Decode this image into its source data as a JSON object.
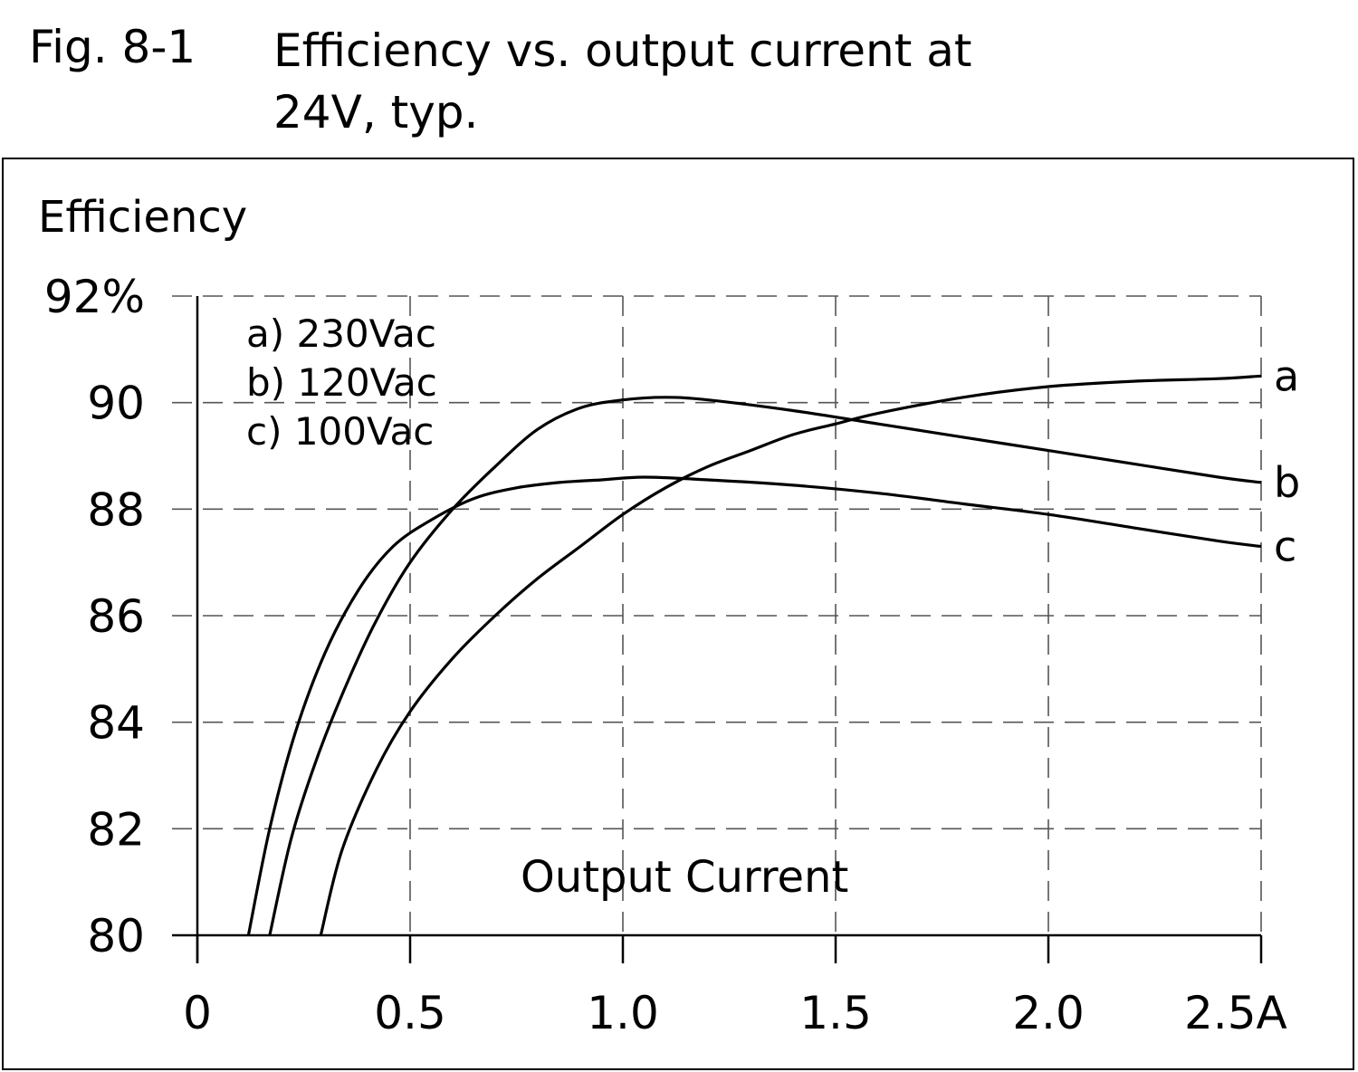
{
  "caption": {
    "number": "Fig. 8-1",
    "title": "Efficiency vs. output current at 24V, typ."
  },
  "chart_data": {
    "type": "line",
    "title": "Efficiency vs. output current at 24V, typ.",
    "xlabel": "Output Current",
    "ylabel": "Efficiency",
    "xlim": [
      0,
      2.5
    ],
    "ylim": [
      80,
      92
    ],
    "grid": true,
    "legend_position": "top-left",
    "x_ticks": [
      {
        "value": 0,
        "label": "0"
      },
      {
        "value": 0.5,
        "label": "0.5"
      },
      {
        "value": 1.0,
        "label": "1.0"
      },
      {
        "value": 1.5,
        "label": "1.5"
      },
      {
        "value": 2.0,
        "label": "2.0"
      },
      {
        "value": 2.5,
        "label": "2.5A"
      }
    ],
    "y_ticks": [
      {
        "value": 80,
        "label": "80"
      },
      {
        "value": 82,
        "label": "82"
      },
      {
        "value": 84,
        "label": "84"
      },
      {
        "value": 86,
        "label": "86"
      },
      {
        "value": 88,
        "label": "88"
      },
      {
        "value": 90,
        "label": "90"
      },
      {
        "value": 92,
        "label": "92%"
      }
    ],
    "legend": [
      "a) 230Vac",
      "b) 120Vac",
      "c) 100Vac"
    ],
    "series": [
      {
        "label": "a",
        "x": [
          0.29,
          0.34,
          0.42,
          0.5,
          0.6,
          0.7,
          0.8,
          0.9,
          1.0,
          1.1,
          1.2,
          1.3,
          1.4,
          1.5,
          1.6,
          1.8,
          2.0,
          2.2,
          2.4,
          2.5
        ],
        "y": [
          80.0,
          81.6,
          83.1,
          84.2,
          85.2,
          86.0,
          86.7,
          87.3,
          87.9,
          88.4,
          88.8,
          89.1,
          89.4,
          89.6,
          89.8,
          90.1,
          90.3,
          90.4,
          90.45,
          90.5
        ]
      },
      {
        "label": "b",
        "x": [
          0.17,
          0.22,
          0.28,
          0.35,
          0.42,
          0.5,
          0.6,
          0.7,
          0.8,
          0.9,
          1.0,
          1.1,
          1.2,
          1.4,
          1.6,
          1.8,
          2.0,
          2.2,
          2.4,
          2.5
        ],
        "y": [
          80.0,
          81.8,
          83.3,
          84.7,
          85.9,
          87.0,
          88.0,
          88.8,
          89.5,
          89.9,
          90.05,
          90.1,
          90.05,
          89.85,
          89.6,
          89.35,
          89.1,
          88.85,
          88.6,
          88.5
        ]
      },
      {
        "label": "c",
        "x": [
          0.12,
          0.17,
          0.23,
          0.3,
          0.38,
          0.46,
          0.55,
          0.65,
          0.75,
          0.85,
          0.95,
          1.05,
          1.2,
          1.4,
          1.6,
          1.8,
          2.0,
          2.2,
          2.4,
          2.5
        ],
        "y": [
          80.0,
          82.0,
          83.8,
          85.3,
          86.5,
          87.3,
          87.8,
          88.2,
          88.4,
          88.5,
          88.55,
          88.6,
          88.55,
          88.45,
          88.3,
          88.1,
          87.9,
          87.65,
          87.4,
          87.3
        ]
      }
    ]
  }
}
